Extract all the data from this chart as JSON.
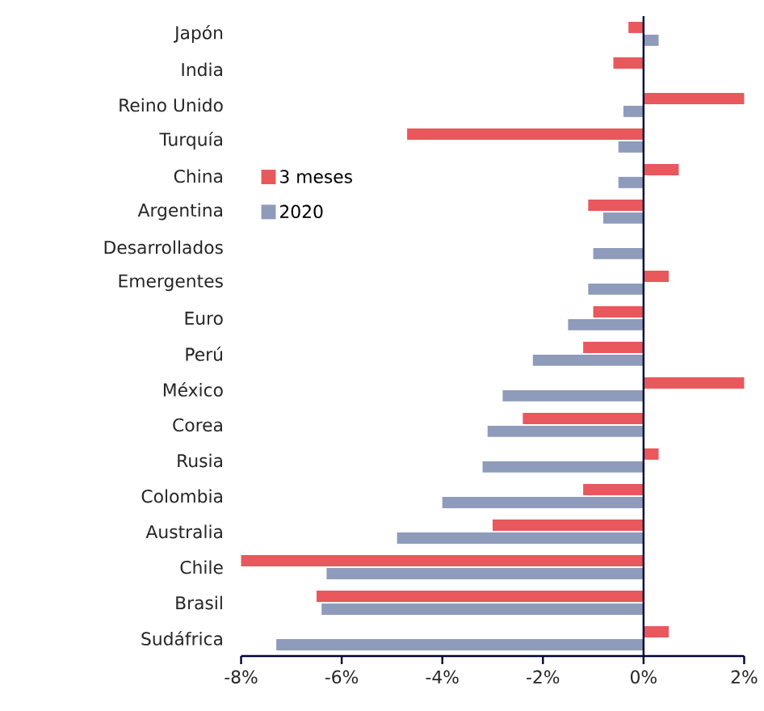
{
  "chart_data": {
    "type": "bar",
    "orientation": "horizontal",
    "categories": [
      "Japón",
      "India",
      "Reino Unido",
      "Turquía",
      "China",
      "Argentina",
      "Desarrollados",
      "Emergentes",
      "Euro",
      "Perú",
      "México",
      "Corea",
      "Rusia",
      "Colombia",
      "Australia",
      "Chile",
      "Brasil",
      "Sudáfrica"
    ],
    "series": [
      {
        "name": "3 meses",
        "color": "#e8585c",
        "values": [
          -0.3,
          -0.6,
          2.0,
          -4.7,
          0.7,
          -1.1,
          null,
          0.5,
          -1.0,
          -1.2,
          2.0,
          -2.4,
          0.3,
          -1.2,
          -3.0,
          -8.0,
          -6.5,
          0.5
        ]
      },
      {
        "name": "2020",
        "color": "#8e9bbb",
        "values": [
          0.3,
          null,
          -0.4,
          -0.5,
          -0.5,
          -0.8,
          -1.0,
          -1.1,
          -1.5,
          -2.2,
          -2.8,
          -3.1,
          -3.2,
          -4.0,
          -4.9,
          -6.3,
          -6.4,
          -7.3
        ]
      }
    ],
    "xlim": [
      -8,
      2
    ],
    "xticks": [
      {
        "value": -8,
        "label": "-8%"
      },
      {
        "value": -6,
        "label": "-6%"
      },
      {
        "value": -4,
        "label": "-4%"
      },
      {
        "value": -2,
        "label": "-2%"
      },
      {
        "value": 0,
        "label": "0%"
      },
      {
        "value": 2,
        "label": "2%"
      }
    ],
    "legend": "left",
    "grid": false
  }
}
